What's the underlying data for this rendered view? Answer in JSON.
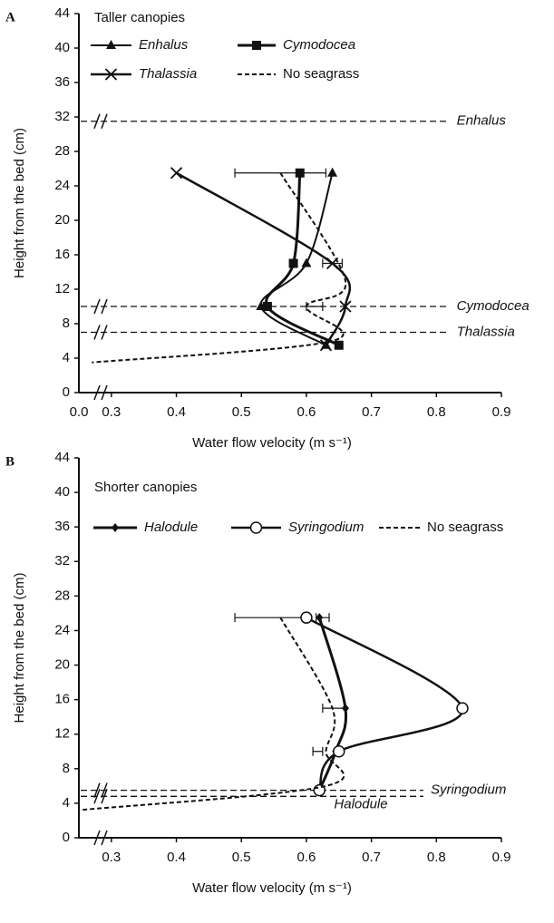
{
  "chart_data": [
    {
      "type": "line",
      "panel_label": "A",
      "title": "Taller canopies",
      "xlabel": "Water flow velocity (m s⁻¹)",
      "ylabel": "Height from the bed (cm)",
      "xlim": [
        0.25,
        0.9
      ],
      "xticks": [
        0.3,
        0.4,
        0.5,
        0.6,
        0.7,
        0.8,
        0.9
      ],
      "x_break_label": "0.0",
      "ylim": [
        0,
        44
      ],
      "yticks": [
        0,
        4,
        8,
        12,
        16,
        20,
        24,
        28,
        32,
        36,
        40,
        44
      ],
      "series": [
        {
          "name": "Enhalus",
          "italic": true,
          "marker": "triangle",
          "dashed": false,
          "width": 2,
          "color": "#111111",
          "values": [
            0.64,
            0.6,
            0.53,
            0.63
          ],
          "heights": [
            25.5,
            15,
            10,
            5.5
          ]
        },
        {
          "name": "Cymodocea",
          "italic": true,
          "marker": "square",
          "dashed": false,
          "width": 3,
          "color": "#111111",
          "values": [
            0.59,
            0.58,
            0.54,
            0.65
          ],
          "heights": [
            25.5,
            15,
            10,
            5.5
          ]
        },
        {
          "name": "Thalassia",
          "italic": true,
          "marker": "x",
          "dashed": false,
          "width": 2.5,
          "color": "#111111",
          "values": [
            0.4,
            0.64,
            0.66,
            0.63
          ],
          "heights": [
            25.5,
            15,
            10,
            5.5
          ]
        },
        {
          "name": "No seagrass",
          "italic": false,
          "marker": "none",
          "dashed": true,
          "width": 2,
          "color": "#111111",
          "values": [
            0.56,
            0.66,
            0.6,
            0.64,
            0.27
          ],
          "heights": [
            25.5,
            13,
            10,
            6,
            3.5
          ]
        }
      ],
      "error_bars": [
        {
          "height": 25.5,
          "low": 0.49,
          "high": 0.63
        },
        {
          "height": 15,
          "low": 0.625,
          "high": 0.655
        },
        {
          "height": 10,
          "low": 0.6,
          "high": 0.625
        }
      ],
      "reference_lines": [
        {
          "label": "Enhalus",
          "height": 31.5
        },
        {
          "label": "Cymodocea",
          "height": 10
        },
        {
          "label": "Thalassia",
          "height": 7
        }
      ]
    },
    {
      "type": "line",
      "panel_label": "B",
      "title": "Shorter canopies",
      "xlabel": "Water flow velocity (m s⁻¹)",
      "ylabel": "Height from the bed (cm)",
      "xlim": [
        0.25,
        0.9
      ],
      "xticks": [
        0.3,
        0.4,
        0.5,
        0.6,
        0.7,
        0.8,
        0.9
      ],
      "ylim": [
        0,
        44
      ],
      "yticks": [
        0,
        4,
        8,
        12,
        16,
        20,
        24,
        28,
        32,
        36,
        40,
        44
      ],
      "series": [
        {
          "name": "Halodule",
          "italic": true,
          "marker": "diamond",
          "dashed": false,
          "width": 3,
          "color": "#111111",
          "values": [
            0.62,
            0.66,
            0.645,
            0.62
          ],
          "heights": [
            25.5,
            15,
            10,
            5.5
          ]
        },
        {
          "name": "Syringodium",
          "italic": true,
          "marker": "circle",
          "dashed": false,
          "width": 2.5,
          "color": "#111111",
          "values": [
            0.6,
            0.84,
            0.65,
            0.62
          ],
          "heights": [
            25.5,
            15,
            10,
            5.5
          ]
        },
        {
          "name": "No seagrass",
          "italic": false,
          "marker": "none",
          "dashed": true,
          "width": 2,
          "color": "#111111",
          "values": [
            0.56,
            0.64,
            0.63,
            0.63,
            0.25
          ],
          "heights": [
            25.5,
            15,
            10,
            6,
            3.2
          ]
        }
      ],
      "error_bars": [
        {
          "height": 25.5,
          "low": 0.49,
          "high": 0.6
        },
        {
          "height": 25.5,
          "low": 0.615,
          "high": 0.635
        },
        {
          "height": 15,
          "low": 0.625,
          "high": 0.66
        },
        {
          "height": 10,
          "low": 0.61,
          "high": 0.625
        }
      ],
      "reference_lines": [
        {
          "label": "Syringodium",
          "height": 5.5
        },
        {
          "label": "Halodule",
          "height": 4.8
        }
      ]
    }
  ]
}
